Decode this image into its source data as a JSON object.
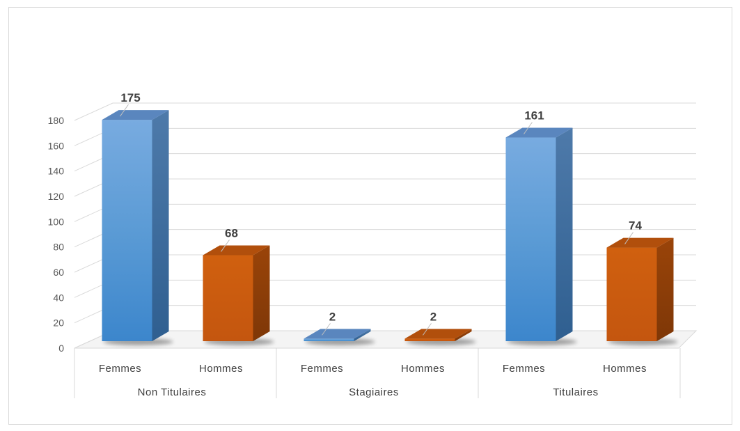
{
  "chart_data": {
    "type": "bar",
    "groups": [
      "Non Titulaires",
      "Stagiaires",
      "Titulaires"
    ],
    "subcategories": [
      "Femmes",
      "Hommes"
    ],
    "series": [
      {
        "values": [
          175,
          2,
          161
        ]
      },
      {
        "values": [
          68,
          2,
          74
        ]
      }
    ],
    "y_ticks": [
      "0",
      "20",
      "40",
      "60",
      "80",
      "100",
      "120",
      "140",
      "160",
      "180"
    ],
    "ylim": [
      0,
      180
    ],
    "grid": true,
    "legend": "none",
    "colors": {
      "femmes": "#5B9BD5",
      "hommes": "#C55A11"
    }
  }
}
